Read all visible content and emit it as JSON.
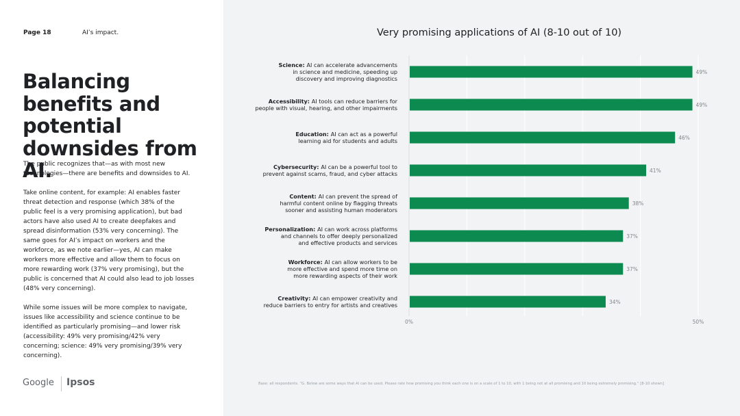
{
  "header": {
    "page": "Page 18",
    "section": "AI’s impact."
  },
  "title": "Balancing benefits and potential downsides from AI.",
  "body": [
    "The public recognizes that—as with most new technologies—there are benefits and downsides to AI.",
    "Take online content, for example: AI enables faster threat detection and response (which 38% of the public feel is a very promising application), but bad actors have also used AI to create deepfakes and spread disinformation (53% very concerning). The same goes for AI’s impact on workers and the workforce, as we note earlier—yes, AI can make workers more effective and allow them to focus on more rewarding work (37% very promising), but the public is concerned that AI could also lead to job losses (48% very concerning).",
    "While some issues will be more complex to navigate, issues like accessibility and science continue to be identified as particularly promising—and lower risk (accessibility: 49% very promising/42% very concerning; science: 49% very promising/39% very concerning)."
  ],
  "logos": {
    "google": "Google",
    "ipsos": "Ipsos"
  },
  "colors": {
    "bar": "#0d8a4f",
    "panel": "#f1f3f4"
  },
  "chart_data": {
    "type": "bar",
    "orientation": "horizontal",
    "title": "Very promising applications of AI (8-10 out of 10)",
    "categories": [
      {
        "bold": "Science:",
        "lines": [
          "AI can accelerate advancements",
          "in science and medicine, speeding up",
          "discovery and improving diagnostics"
        ]
      },
      {
        "bold": "Accessibility:",
        "lines": [
          "AI tools can reduce barriers for",
          "people with visual, hearing, and other impairments"
        ]
      },
      {
        "bold": "Education:",
        "lines": [
          "AI can act as a powerful",
          "learning aid for students and adults"
        ]
      },
      {
        "bold": "Cybersecurity:",
        "lines": [
          "AI can be a powerful tool to",
          "prevent against scams, fraud, and cyber attacks"
        ]
      },
      {
        "bold": "Content:",
        "lines": [
          "AI can prevent the spread of",
          "harmful content online by flagging threats",
          "sooner and assisting human moderators"
        ]
      },
      {
        "bold": "Personalization:",
        "lines": [
          "AI can work across platforms",
          "and channels to offer deeply personalized",
          "and effective products and services"
        ]
      },
      {
        "bold": "Workforce:",
        "lines": [
          "AI can allow workers to be",
          "more effective and spend more time on",
          "more rewarding aspects of their work"
        ]
      },
      {
        "bold": "Creativity:",
        "lines": [
          "AI can empower creativity and",
          "reduce barriers to entry for artists and creatives"
        ]
      }
    ],
    "values": [
      49,
      49,
      46,
      41,
      38,
      37,
      37,
      34
    ],
    "value_labels": [
      "49%",
      "49%",
      "46%",
      "41%",
      "38%",
      "37%",
      "37%",
      "34%"
    ],
    "xlim": [
      0,
      50
    ],
    "xticks": [
      0,
      50
    ],
    "xtick_labels": [
      "0%",
      "50%"
    ],
    "gridlines": [
      10,
      20,
      30,
      40,
      50
    ],
    "footnote": "Base: all respondents. “G. Below are some ways that AI can be used. Please rate how promising you think each one is on a scale of 1 to 10, with 1 being not at all promising and 10 being extremely promising.” [8-10 shown]"
  }
}
